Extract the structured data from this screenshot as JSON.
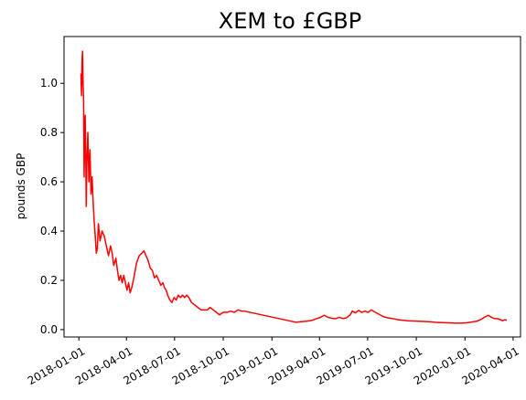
{
  "chart_data": {
    "type": "line",
    "title": "XEM to £GBP",
    "xlabel": "",
    "ylabel": "pounds GBP",
    "x_scale": "date",
    "xlim": [
      "2017-12-04",
      "2020-04-15"
    ],
    "ylim": [
      -0.03,
      1.19
    ],
    "grid": false,
    "legend": "none",
    "xticks": [
      "2018-01-01",
      "2018-04-01",
      "2018-07-01",
      "2018-10-01",
      "2019-01-01",
      "2019-04-01",
      "2019-07-01",
      "2019-10-01",
      "2020-01-01",
      "2020-04-01"
    ],
    "yticks": [
      0.0,
      0.2,
      0.4,
      0.6,
      0.8,
      1.0
    ],
    "ytick_labels": [
      "0.0",
      "0.2",
      "0.4",
      "0.6",
      "0.8",
      "1.0"
    ],
    "series": [
      {
        "color": "#ff0000",
        "points": [
          [
            "2018-01-05",
            1.04
          ],
          [
            "2018-01-06",
            0.95
          ],
          [
            "2018-01-07",
            1.09
          ],
          [
            "2018-01-08",
            1.13
          ],
          [
            "2018-01-09",
            1.0
          ],
          [
            "2018-01-10",
            0.93
          ],
          [
            "2018-01-11",
            0.62
          ],
          [
            "2018-01-12",
            0.76
          ],
          [
            "2018-01-13",
            0.87
          ],
          [
            "2018-01-14",
            0.72
          ],
          [
            "2018-01-15",
            0.5
          ],
          [
            "2018-01-16",
            0.66
          ],
          [
            "2018-01-18",
            0.8
          ],
          [
            "2018-01-20",
            0.6
          ],
          [
            "2018-01-22",
            0.73
          ],
          [
            "2018-01-24",
            0.55
          ],
          [
            "2018-01-26",
            0.62
          ],
          [
            "2018-01-28",
            0.52
          ],
          [
            "2018-01-30",
            0.44
          ],
          [
            "2018-02-01",
            0.38
          ],
          [
            "2018-02-03",
            0.31
          ],
          [
            "2018-02-05",
            0.33
          ],
          [
            "2018-02-07",
            0.43
          ],
          [
            "2018-02-10",
            0.36
          ],
          [
            "2018-02-14",
            0.4
          ],
          [
            "2018-02-18",
            0.38
          ],
          [
            "2018-02-22",
            0.34
          ],
          [
            "2018-02-26",
            0.3
          ],
          [
            "2018-03-02",
            0.34
          ],
          [
            "2018-03-05",
            0.31
          ],
          [
            "2018-03-08",
            0.26
          ],
          [
            "2018-03-12",
            0.29
          ],
          [
            "2018-03-15",
            0.24
          ],
          [
            "2018-03-18",
            0.2
          ],
          [
            "2018-03-21",
            0.22
          ],
          [
            "2018-03-24",
            0.19
          ],
          [
            "2018-03-27",
            0.22
          ],
          [
            "2018-03-30",
            0.19
          ],
          [
            "2018-04-02",
            0.16
          ],
          [
            "2018-04-05",
            0.19
          ],
          [
            "2018-04-08",
            0.15
          ],
          [
            "2018-04-11",
            0.17
          ],
          [
            "2018-04-15",
            0.21
          ],
          [
            "2018-04-20",
            0.27
          ],
          [
            "2018-04-25",
            0.3
          ],
          [
            "2018-04-30",
            0.31
          ],
          [
            "2018-05-04",
            0.32
          ],
          [
            "2018-05-08",
            0.3
          ],
          [
            "2018-05-12",
            0.28
          ],
          [
            "2018-05-16",
            0.25
          ],
          [
            "2018-05-20",
            0.24
          ],
          [
            "2018-05-24",
            0.21
          ],
          [
            "2018-05-28",
            0.22
          ],
          [
            "2018-06-01",
            0.2
          ],
          [
            "2018-06-05",
            0.18
          ],
          [
            "2018-06-09",
            0.19
          ],
          [
            "2018-06-12",
            0.17
          ],
          [
            "2018-06-15",
            0.16
          ],
          [
            "2018-06-18",
            0.14
          ],
          [
            "2018-06-22",
            0.12
          ],
          [
            "2018-06-26",
            0.11
          ],
          [
            "2018-06-30",
            0.13
          ],
          [
            "2018-07-04",
            0.12
          ],
          [
            "2018-07-08",
            0.14
          ],
          [
            "2018-07-12",
            0.13
          ],
          [
            "2018-07-16",
            0.14
          ],
          [
            "2018-07-20",
            0.13
          ],
          [
            "2018-07-24",
            0.14
          ],
          [
            "2018-07-28",
            0.13
          ],
          [
            "2018-08-02",
            0.11
          ],
          [
            "2018-08-08",
            0.1
          ],
          [
            "2018-08-14",
            0.09
          ],
          [
            "2018-08-20",
            0.08
          ],
          [
            "2018-08-26",
            0.08
          ],
          [
            "2018-09-01",
            0.08
          ],
          [
            "2018-09-06",
            0.09
          ],
          [
            "2018-09-12",
            0.08
          ],
          [
            "2018-09-18",
            0.07
          ],
          [
            "2018-09-24",
            0.06
          ],
          [
            "2018-10-01",
            0.07
          ],
          [
            "2018-10-08",
            0.07
          ],
          [
            "2018-10-15",
            0.075
          ],
          [
            "2018-10-22",
            0.07
          ],
          [
            "2018-10-29",
            0.08
          ],
          [
            "2018-11-05",
            0.075
          ],
          [
            "2018-11-10",
            0.075
          ],
          [
            "2019-02-15",
            0.03
          ],
          [
            "2019-02-25",
            0.032
          ],
          [
            "2019-03-07",
            0.034
          ],
          [
            "2019-03-17",
            0.037
          ],
          [
            "2019-03-27",
            0.045
          ],
          [
            "2019-04-03",
            0.05
          ],
          [
            "2019-04-10",
            0.058
          ],
          [
            "2019-04-17",
            0.05
          ],
          [
            "2019-04-24",
            0.046
          ],
          [
            "2019-05-01",
            0.044
          ],
          [
            "2019-05-08",
            0.05
          ],
          [
            "2019-05-15",
            0.045
          ],
          [
            "2019-05-22",
            0.048
          ],
          [
            "2019-05-29",
            0.06
          ],
          [
            "2019-06-02",
            0.075
          ],
          [
            "2019-06-08",
            0.068
          ],
          [
            "2019-06-14",
            0.078
          ],
          [
            "2019-06-20",
            0.07
          ],
          [
            "2019-06-26",
            0.075
          ],
          [
            "2019-07-02",
            0.07
          ],
          [
            "2019-07-08",
            0.08
          ],
          [
            "2019-07-14",
            0.072
          ],
          [
            "2019-07-20",
            0.065
          ],
          [
            "2019-07-26",
            0.058
          ],
          [
            "2019-08-01",
            0.052
          ],
          [
            "2019-08-07",
            0.048
          ],
          [
            "2019-08-14",
            0.046
          ],
          [
            "2019-08-21",
            0.043
          ],
          [
            "2019-08-28",
            0.04
          ],
          [
            "2019-09-05",
            0.038
          ],
          [
            "2019-09-15",
            0.036
          ],
          [
            "2019-09-25",
            0.035
          ],
          [
            "2019-10-05",
            0.034
          ],
          [
            "2019-10-15",
            0.033
          ],
          [
            "2019-10-25",
            0.032
          ],
          [
            "2019-11-05",
            0.03
          ],
          [
            "2019-11-15",
            0.029
          ],
          [
            "2019-11-25",
            0.028
          ],
          [
            "2019-12-05",
            0.027
          ],
          [
            "2019-12-15",
            0.026
          ],
          [
            "2019-12-25",
            0.026
          ],
          [
            "2020-01-05",
            0.028
          ],
          [
            "2020-01-15",
            0.031
          ],
          [
            "2020-01-25",
            0.035
          ],
          [
            "2020-02-01",
            0.042
          ],
          [
            "2020-02-08",
            0.052
          ],
          [
            "2020-02-14",
            0.058
          ],
          [
            "2020-02-20",
            0.05
          ],
          [
            "2020-02-26",
            0.045
          ],
          [
            "2020-03-03",
            0.044
          ],
          [
            "2020-03-08",
            0.04
          ],
          [
            "2020-03-12",
            0.036
          ],
          [
            "2020-03-16",
            0.04
          ],
          [
            "2020-03-20",
            0.038
          ]
        ]
      }
    ]
  }
}
